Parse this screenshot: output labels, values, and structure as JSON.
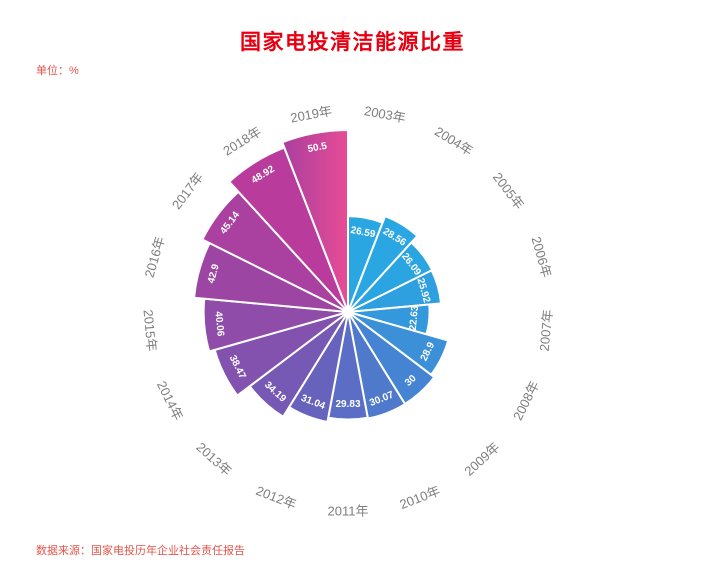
{
  "page": {
    "title": "国家电投清洁能源比重",
    "unit_label": "单位：%",
    "source_label": "数据来源：国家电投历年企业社会责任报告"
  },
  "colors": {
    "title_red": "#E60012",
    "footnote_red": "#E2554B",
    "category_label_gray": "#7E7E7E",
    "value_label_white": "#FFFFFF",
    "background": "#FFFFFF"
  },
  "chart_data": {
    "type": "pie",
    "variant": "nightingale-rose",
    "title": "国家电投清洁能源比重",
    "unit": "%",
    "categories": [
      "2003年",
      "2004年",
      "2005年",
      "2006年",
      "2007年",
      "2008年",
      "2009年",
      "2010年",
      "2011年",
      "2012年",
      "2013年",
      "2014年",
      "2015年",
      "2016年",
      "2017年",
      "2018年",
      "2019年"
    ],
    "values": [
      26.59,
      28.56,
      26.09,
      25.92,
      22.63,
      28.9,
      30,
      30.07,
      29.83,
      31.04,
      34.19,
      38.47,
      40.06,
      42.9,
      45.14,
      48.92,
      50.5
    ],
    "value_labels": [
      "26.59",
      "28.56",
      "26.09",
      "25.92",
      "22.63",
      "28.9",
      "30",
      "30.07",
      "29.83",
      "31.04",
      "34.19",
      "38.47",
      "40.06",
      "42.9",
      "45.14",
      "48.92",
      "50.5"
    ],
    "radial_range": [
      0,
      50.5
    ],
    "start_angle_deg": 0,
    "clockwise": true,
    "grid": false,
    "legend": "none",
    "palette": [
      "#2AA7E2",
      "#2AA7E2",
      "#2BA5E1",
      "#2E9FDF",
      "#3399DC",
      "#3B90D8",
      "#4484D2",
      "#4F79CB",
      "#5B6DC4",
      "#6762BC",
      "#7559B5",
      "#8252AE",
      "#8F4CA8",
      "#9C45A3",
      "#AA409F",
      "#B93C9C",
      "#CC3A98"
    ],
    "highlight": {
      "index": 16,
      "gradient": [
        "#A83F9F",
        "#E84C95"
      ]
    }
  }
}
